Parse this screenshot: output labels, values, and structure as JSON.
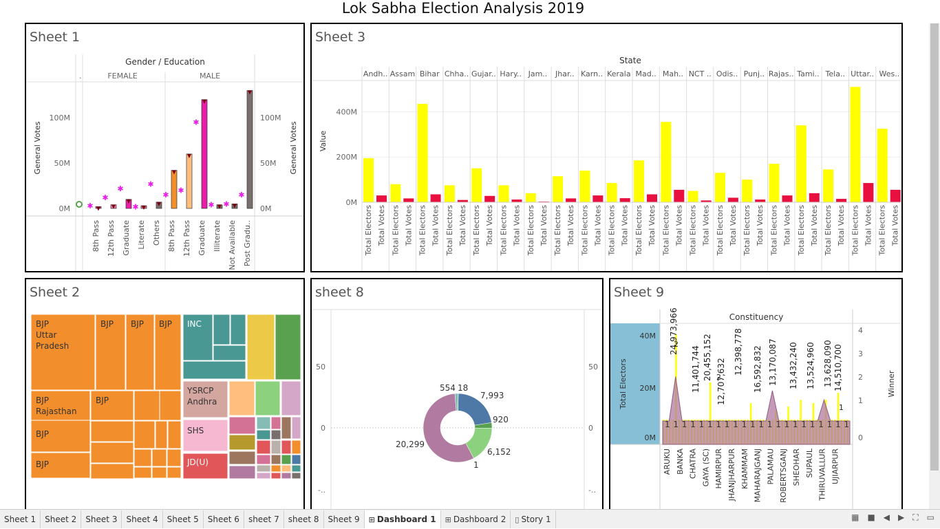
{
  "dashboard_title": "Lok Sabha Election Analysis 2019",
  "sheet1": {
    "title": "Sheet 1",
    "header": "Gender / Education",
    "groups": [
      "FEMALE",
      "MALE"
    ],
    "dot_label": ".",
    "left_axis_label": "General Votes",
    "right_axis_label": "General Votes",
    "left_ticks": [
      "100M",
      "50M",
      "0M"
    ],
    "right_ticks": [
      "100M",
      "50M",
      "0M"
    ],
    "categories": [
      "8th Pass",
      "12th Pass",
      "Graduate",
      "Literate",
      "Others",
      "8th Pass",
      "12th Pass",
      "Graduate",
      "Illiterate",
      "Not Available",
      "Post Gradu.."
    ]
  },
  "sheet3": {
    "title": "Sheet 3",
    "header": "State",
    "y_label": "Value",
    "y_ticks": [
      "400M",
      "200M",
      "0M"
    ],
    "measure_labels": [
      "Total Electors",
      "Total Votes"
    ],
    "states": [
      "Andh..",
      "Assam",
      "Bihar",
      "Chha..",
      "Gujar..",
      "Hary..",
      "Jam..",
      "Jhar..",
      "Karn..",
      "Kerala",
      "Mad..",
      "Mah..",
      "NCT ..",
      "Odis..",
      "Punj..",
      "Rajas..",
      "Tami..",
      "Tela..",
      "Uttar..",
      "Wes.."
    ]
  },
  "sheet2": {
    "title": "Sheet 2",
    "labels": {
      "bjp_up": "BJP\nUttar\nPradesh",
      "bjp": "BJP",
      "bjp_raj": "BJP\nRajasthan",
      "inc": "INC",
      "ysrcp": "YSRCP\nAndhra",
      "shs": "SHS",
      "jdu": "JD(U)"
    }
  },
  "sheet8": {
    "title": "sheet 8",
    "left_ticks": [
      "50",
      "0",
      "-.."
    ],
    "right_ticks": [
      "50",
      "0",
      "-.."
    ],
    "slice_labels": [
      "554",
      "18",
      "7,993",
      "920",
      "6,152",
      "1",
      "20,299"
    ]
  },
  "sheet9": {
    "title": "Sheet 9",
    "header": "Constituency",
    "left_axis_label": "Total Electors",
    "right_axis_label": "Winner",
    "left_ticks": [
      "40M",
      "20M",
      "0M"
    ],
    "right_ticks": [
      "4",
      "3",
      "2",
      "1",
      "0"
    ],
    "constituencies": [
      "ARUKU",
      "BANKA",
      "CHATRA",
      "GAYA (SC)",
      "HAMIRPUR",
      "JHANJHARPUR",
      "KHAMMAM",
      "MAHARAJGANJ",
      "PALAMAU",
      "ROBERTSGANJ",
      "SHEOHAR",
      "SUPAUL",
      "THIRUVALLUR",
      "UJIARPUR"
    ],
    "value_labels": [
      "24,973,966",
      "11,401,744",
      "20,455,152",
      "12,707,632",
      "12,398,778",
      "16,592,832",
      "13,170,087",
      "13,432,240",
      "13,524,960",
      "13,628,090",
      "14,510,700"
    ],
    "small_labels": [
      "2",
      "2",
      "1"
    ],
    "ones": "1"
  },
  "tabs": [
    "Sheet 1",
    "Sheet 2",
    "Sheet 3",
    "Sheet 4",
    "Sheet 5",
    "Sheet 6",
    "sheet 7",
    "sheet 8",
    "Sheet 9",
    "Dashboard 1",
    "Dashboard 2",
    "Story 1"
  ],
  "active_tab": "Dashboard 1",
  "colors": {
    "yellow": "#ffff00",
    "crimson": "#e8103f",
    "orange": "#f28e2b",
    "teal": "#499894",
    "magenta": "#e81ea8",
    "pink": "#d37295",
    "gray": "#79706e"
  },
  "chart_data": [
    {
      "type": "bar",
      "title": "Sheet 1",
      "xlabel": "Gender / Education",
      "ylabel": "General Votes",
      "categories": [
        "FEMALE / 8th Pass",
        "FEMALE / 12th Pass",
        "FEMALE / Graduate",
        "FEMALE / Literate",
        "FEMALE / Others",
        "MALE / 8th Pass",
        "MALE / 12th Pass",
        "MALE / Graduate",
        "MALE / Illiterate",
        "MALE / Not Available",
        "MALE / Post Gradu.."
      ],
      "series": [
        {
          "values": [
            2,
            4,
            10,
            3,
            7,
            42,
            60,
            120,
            4,
            5,
            130
          ]
        },
        {
          "values": [
            3,
            12,
            22,
            2,
            27,
            15,
            20,
            95,
            4,
            5,
            15
          ]
        }
      ],
      "ylim": [
        0,
        135
      ]
    },
    {
      "type": "bar",
      "title": "Sheet 3",
      "xlabel": "State",
      "ylabel": "Value",
      "categories": [
        "Andh..",
        "Assam",
        "Bihar",
        "Chha..",
        "Gujar..",
        "Hary..",
        "Jam..",
        "Jhar..",
        "Karn..",
        "Kerala",
        "Mad..",
        "Mah..",
        "NCT ..",
        "Odis..",
        "Punj..",
        "Rajas..",
        "Tami..",
        "Tela..",
        "Uttar..",
        "Wes.."
      ],
      "series": [
        {
          "name": "Total Electors",
          "values": [
            195,
            80,
            435,
            75,
            150,
            75,
            40,
            115,
            140,
            85,
            185,
            355,
            50,
            130,
            100,
            170,
            340,
            145,
            510,
            325
          ]
        },
        {
          "name": "Total Votes",
          "values": [
            30,
            17,
            35,
            10,
            28,
            12,
            3,
            17,
            30,
            18,
            35,
            55,
            8,
            20,
            12,
            30,
            40,
            15,
            85,
            55
          ]
        }
      ],
      "ylim": [
        0,
        520
      ]
    },
    {
      "type": "pie",
      "title": "sheet 8",
      "categories": [
        "7,993",
        "920",
        "6,152",
        "1",
        "20,299",
        "554",
        "18"
      ],
      "values": [
        7993,
        920,
        6152,
        1,
        20299,
        554,
        18
      ]
    },
    {
      "type": "area",
      "title": "Sheet 9",
      "xlabel": "Constituency",
      "ylabel": "Total Electors",
      "categories": [
        "ARUKU",
        "BANKA",
        "CHATRA",
        "GAYA (SC)",
        "HAMIRPUR",
        "JHANJHARPUR",
        "KHAMMAM",
        "MAHARAJGANJ",
        "PALAMAU",
        "ROBERTSGANJ",
        "SHEOHAR",
        "SUPAUL",
        "THIRUVALLUR",
        "UJIARPUR"
      ],
      "series": [
        {
          "name": "Winner",
          "values": [
            1,
            2,
            1,
            1,
            2,
            1,
            1,
            2,
            1,
            1,
            1,
            1,
            1,
            1
          ]
        }
      ],
      "ylim": [
        0,
        4
      ]
    }
  ]
}
